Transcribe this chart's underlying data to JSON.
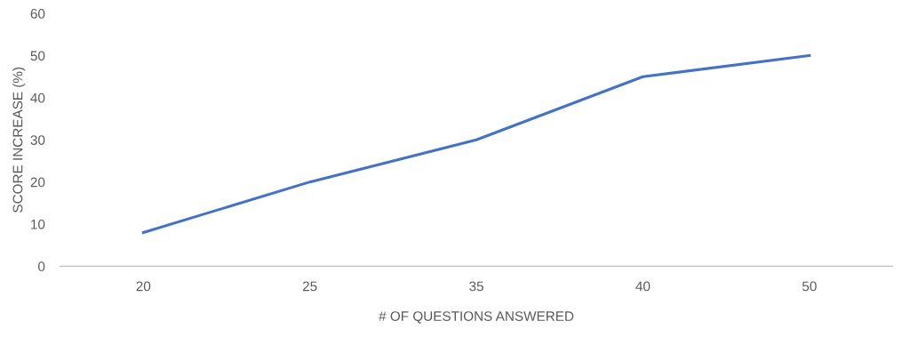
{
  "chart_data": {
    "type": "line",
    "xlabel": "# OF QUESTIONS ANSWERED",
    "ylabel": "SCORE INCREASE (%)",
    "categories": [
      "20",
      "25",
      "35",
      "40",
      "50"
    ],
    "series": [
      {
        "color": "#4472c4",
        "values": [
          8,
          20,
          30,
          45,
          50
        ]
      }
    ],
    "ylim": [
      0,
      60
    ],
    "yticks": [
      0,
      10,
      20,
      30,
      40,
      50,
      60
    ],
    "grid": false,
    "legend": false,
    "marker": "none",
    "line_style": "solid"
  }
}
